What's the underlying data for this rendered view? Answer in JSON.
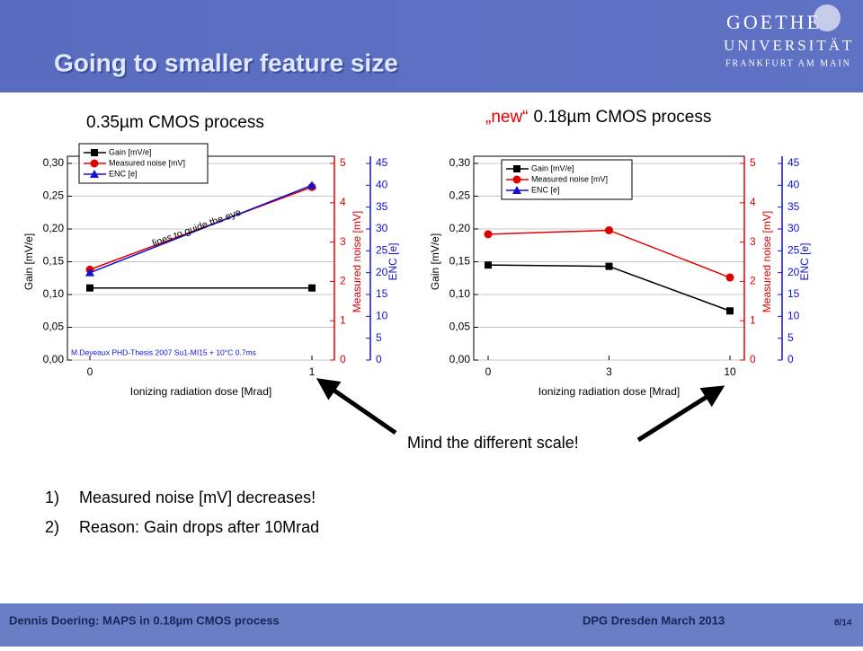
{
  "slide": {
    "title": "Going to smaller feature size",
    "logo": [
      "GOETHE",
      "UNIVERSITÄT",
      "FRANKFURT AM MAIN"
    ],
    "heading_left": "0.35µm CMOS process",
    "heading_right_new": "„new“",
    "heading_right": "0.18µm CMOS process",
    "callout": "Mind the different scale!",
    "list": [
      {
        "num": "1)",
        "text": "Measured noise [mV] decreases!"
      },
      {
        "num": "2)",
        "text": "Reason: Gain drops after 10Mrad"
      }
    ],
    "footer_left": "Dennis Doering: MAPS in 0.18µm CMOS process",
    "footer_right": "DPG Dresden March 2013",
    "page": "8/14"
  },
  "chart_data": [
    {
      "type": "line",
      "x_label": "Ionizing radiation dose [Mrad]",
      "y_label": "Gain [mV/e]",
      "y2_label": "Measured noise [mV]",
      "y3_label": "ENC [e]",
      "annotations": [
        "lines to guide the eye",
        "M.Deveaux PHD-Thesis 2007  Su1-MI15 + 10°C 0.7ms"
      ],
      "categories": [
        "0",
        "1"
      ],
      "ylim": [
        0,
        0.3
      ],
      "yticks": [
        {
          "value": 0,
          "label": "0,00"
        },
        {
          "value": 0.05,
          "label": "0,05"
        },
        {
          "value": 0.1,
          "label": "0,10"
        },
        {
          "value": 0.15,
          "label": "0,15"
        },
        {
          "value": 0.2,
          "label": "0,20"
        },
        {
          "value": 0.25,
          "label": "0,25"
        },
        {
          "value": 0.3,
          "label": "0,30"
        }
      ],
      "y2lim": [
        0,
        5
      ],
      "y2ticks": [
        0,
        1,
        2,
        3,
        4,
        5
      ],
      "y3lim": [
        0,
        45
      ],
      "y3ticks": [
        0,
        5,
        10,
        15,
        20,
        25,
        30,
        35,
        40,
        45
      ],
      "grid": true,
      "legend": "top-left",
      "series": [
        {
          "name": "Gain [mV/e]",
          "color": "#000000",
          "marker": "square",
          "axis": "y",
          "values": [
            0.11,
            0.11
          ]
        },
        {
          "name": "Measured noise [mV]",
          "color": "#e00000",
          "marker": "circle",
          "axis": "y2",
          "values": [
            2.3,
            4.4
          ]
        },
        {
          "name": "ENC [e]",
          "color": "#1010d0",
          "marker": "triangle",
          "axis": "y3",
          "values": [
            20,
            40
          ]
        }
      ]
    },
    {
      "type": "line",
      "x_label": "Ionizing radiation dose [Mrad]",
      "y_label": "Gain [mV/e]",
      "y2_label": "Measured noise [mV]",
      "y3_label": "ENC [e]",
      "categories": [
        "0",
        "3",
        "10"
      ],
      "ylim": [
        0,
        0.3
      ],
      "yticks": [
        {
          "value": 0,
          "label": "0,00"
        },
        {
          "value": 0.05,
          "label": "0,05"
        },
        {
          "value": 0.1,
          "label": "0,10"
        },
        {
          "value": 0.15,
          "label": "0,15"
        },
        {
          "value": 0.2,
          "label": "0,20"
        },
        {
          "value": 0.25,
          "label": "0,25"
        },
        {
          "value": 0.3,
          "label": "0,30"
        }
      ],
      "y2lim": [
        0,
        5
      ],
      "y2ticks": [
        0,
        1,
        2,
        3,
        4,
        5
      ],
      "y3lim": [
        0,
        45
      ],
      "y3ticks": [
        0,
        5,
        10,
        15,
        20,
        25,
        30,
        35,
        40,
        45
      ],
      "grid": true,
      "legend": "top-left",
      "series": [
        {
          "name": "Gain [mV/e]",
          "color": "#000000",
          "marker": "square",
          "axis": "y",
          "values": [
            0.145,
            0.143,
            0.075
          ]
        },
        {
          "name": "Measured noise [mV]",
          "color": "#e00000",
          "marker": "circle",
          "axis": "y2",
          "values": [
            3.2,
            3.3,
            2.1
          ]
        },
        {
          "name": "ENC [e]",
          "color": "#1010d0",
          "marker": "triangle",
          "axis": "y3",
          "values": [
            null,
            null,
            null
          ]
        }
      ]
    }
  ]
}
